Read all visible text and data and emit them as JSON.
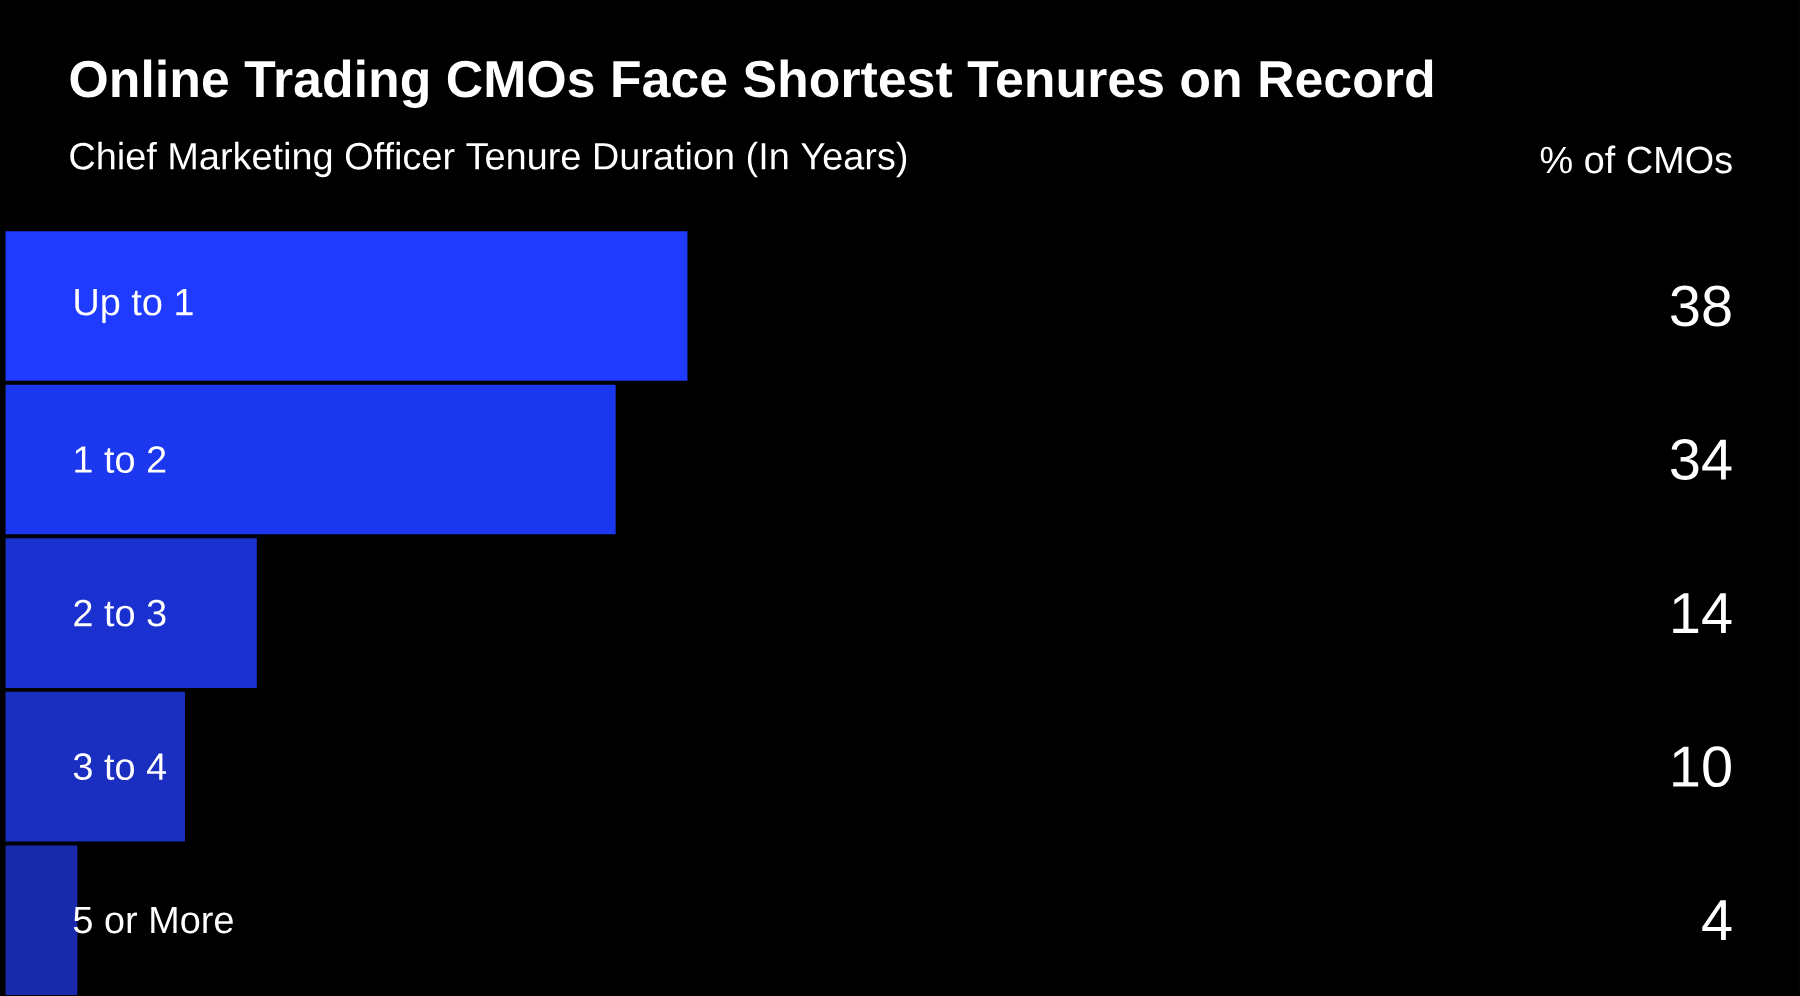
{
  "chart_data": {
    "type": "bar",
    "orientation": "horizontal",
    "title": "Online Trading CMOs Face Shortest Tenures on Record",
    "subtitle": "Chief Marketing Officer Tenure Duration (In Years)",
    "annotations": [
      "% of CMOs"
    ],
    "categories": [
      "Up to 1",
      "1 to 2",
      "2 to 3",
      "3 to 4",
      "5 or More"
    ],
    "values": [
      38,
      34,
      14,
      10,
      4
    ],
    "colors": [
      "#1f3bff",
      "#1c38ee",
      "#1a31cf",
      "#1a2ec0",
      "#1a2aad"
    ],
    "data_labels": true
  }
}
